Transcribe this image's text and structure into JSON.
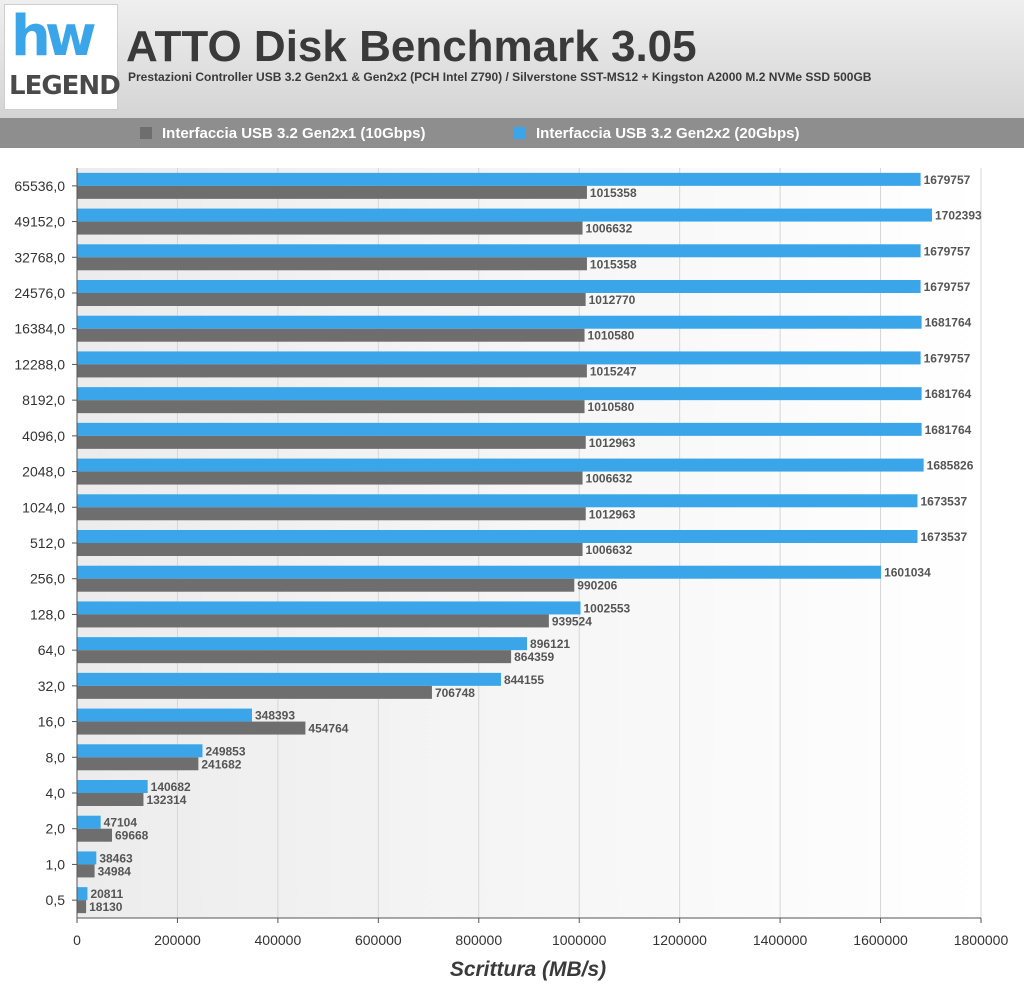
{
  "header": {
    "logo_top": "hw",
    "logo_bottom": "LEGEND",
    "title": "ATTO Disk Benchmark 3.05",
    "subtitle": "Prestazioni Controller USB 3.2 Gen2x1 & Gen2x2 (PCH Intel Z790) / Silverstone SST-MS12 + Kingston A2000 M.2 NVMe SSD 500GB"
  },
  "legend": [
    {
      "label": "Interfaccia USB 3.2 Gen2x1 (10Gbps)",
      "color": "#6e6e6e"
    },
    {
      "label": "Interfaccia USB 3.2 Gen2x2 (20Gbps)",
      "color": "#3aa6e9"
    }
  ],
  "chart_data": {
    "type": "bar",
    "orientation": "horizontal",
    "xlabel": "Scrittura (MB/s)",
    "xlim": [
      0,
      1800000
    ],
    "xticks": [
      0,
      200000,
      400000,
      600000,
      800000,
      1000000,
      1200000,
      1400000,
      1600000,
      1800000
    ],
    "categories": [
      "65536,0",
      "49152,0",
      "32768,0",
      "24576,0",
      "16384,0",
      "12288,0",
      "8192,0",
      "4096,0",
      "2048,0",
      "1024,0",
      "512,0",
      "256,0",
      "128,0",
      "64,0",
      "32,0",
      "16,0",
      "8,0",
      "4,0",
      "2,0",
      "1,0",
      "0,5"
    ],
    "series": [
      {
        "name": "Interfaccia USB 3.2 Gen2x2 (20Gbps)",
        "color": "#3aa6e9",
        "values": [
          1679757,
          1702393,
          1679757,
          1679757,
          1681764,
          1679757,
          1681764,
          1681764,
          1685826,
          1673537,
          1673537,
          1601034,
          1002553,
          896121,
          844155,
          348393,
          249853,
          140682,
          47104,
          38463,
          20811
        ]
      },
      {
        "name": "Interfaccia USB 3.2 Gen2x1 (10Gbps)",
        "color": "#6e6e6e",
        "values": [
          1015358,
          1006632,
          1015358,
          1012770,
          1010580,
          1015247,
          1010580,
          1012963,
          1006632,
          1012963,
          1006632,
          990206,
          939524,
          864359,
          706748,
          454764,
          241682,
          132314,
          69668,
          34984,
          18130
        ]
      }
    ],
    "grid": true,
    "legend_position": "top"
  }
}
